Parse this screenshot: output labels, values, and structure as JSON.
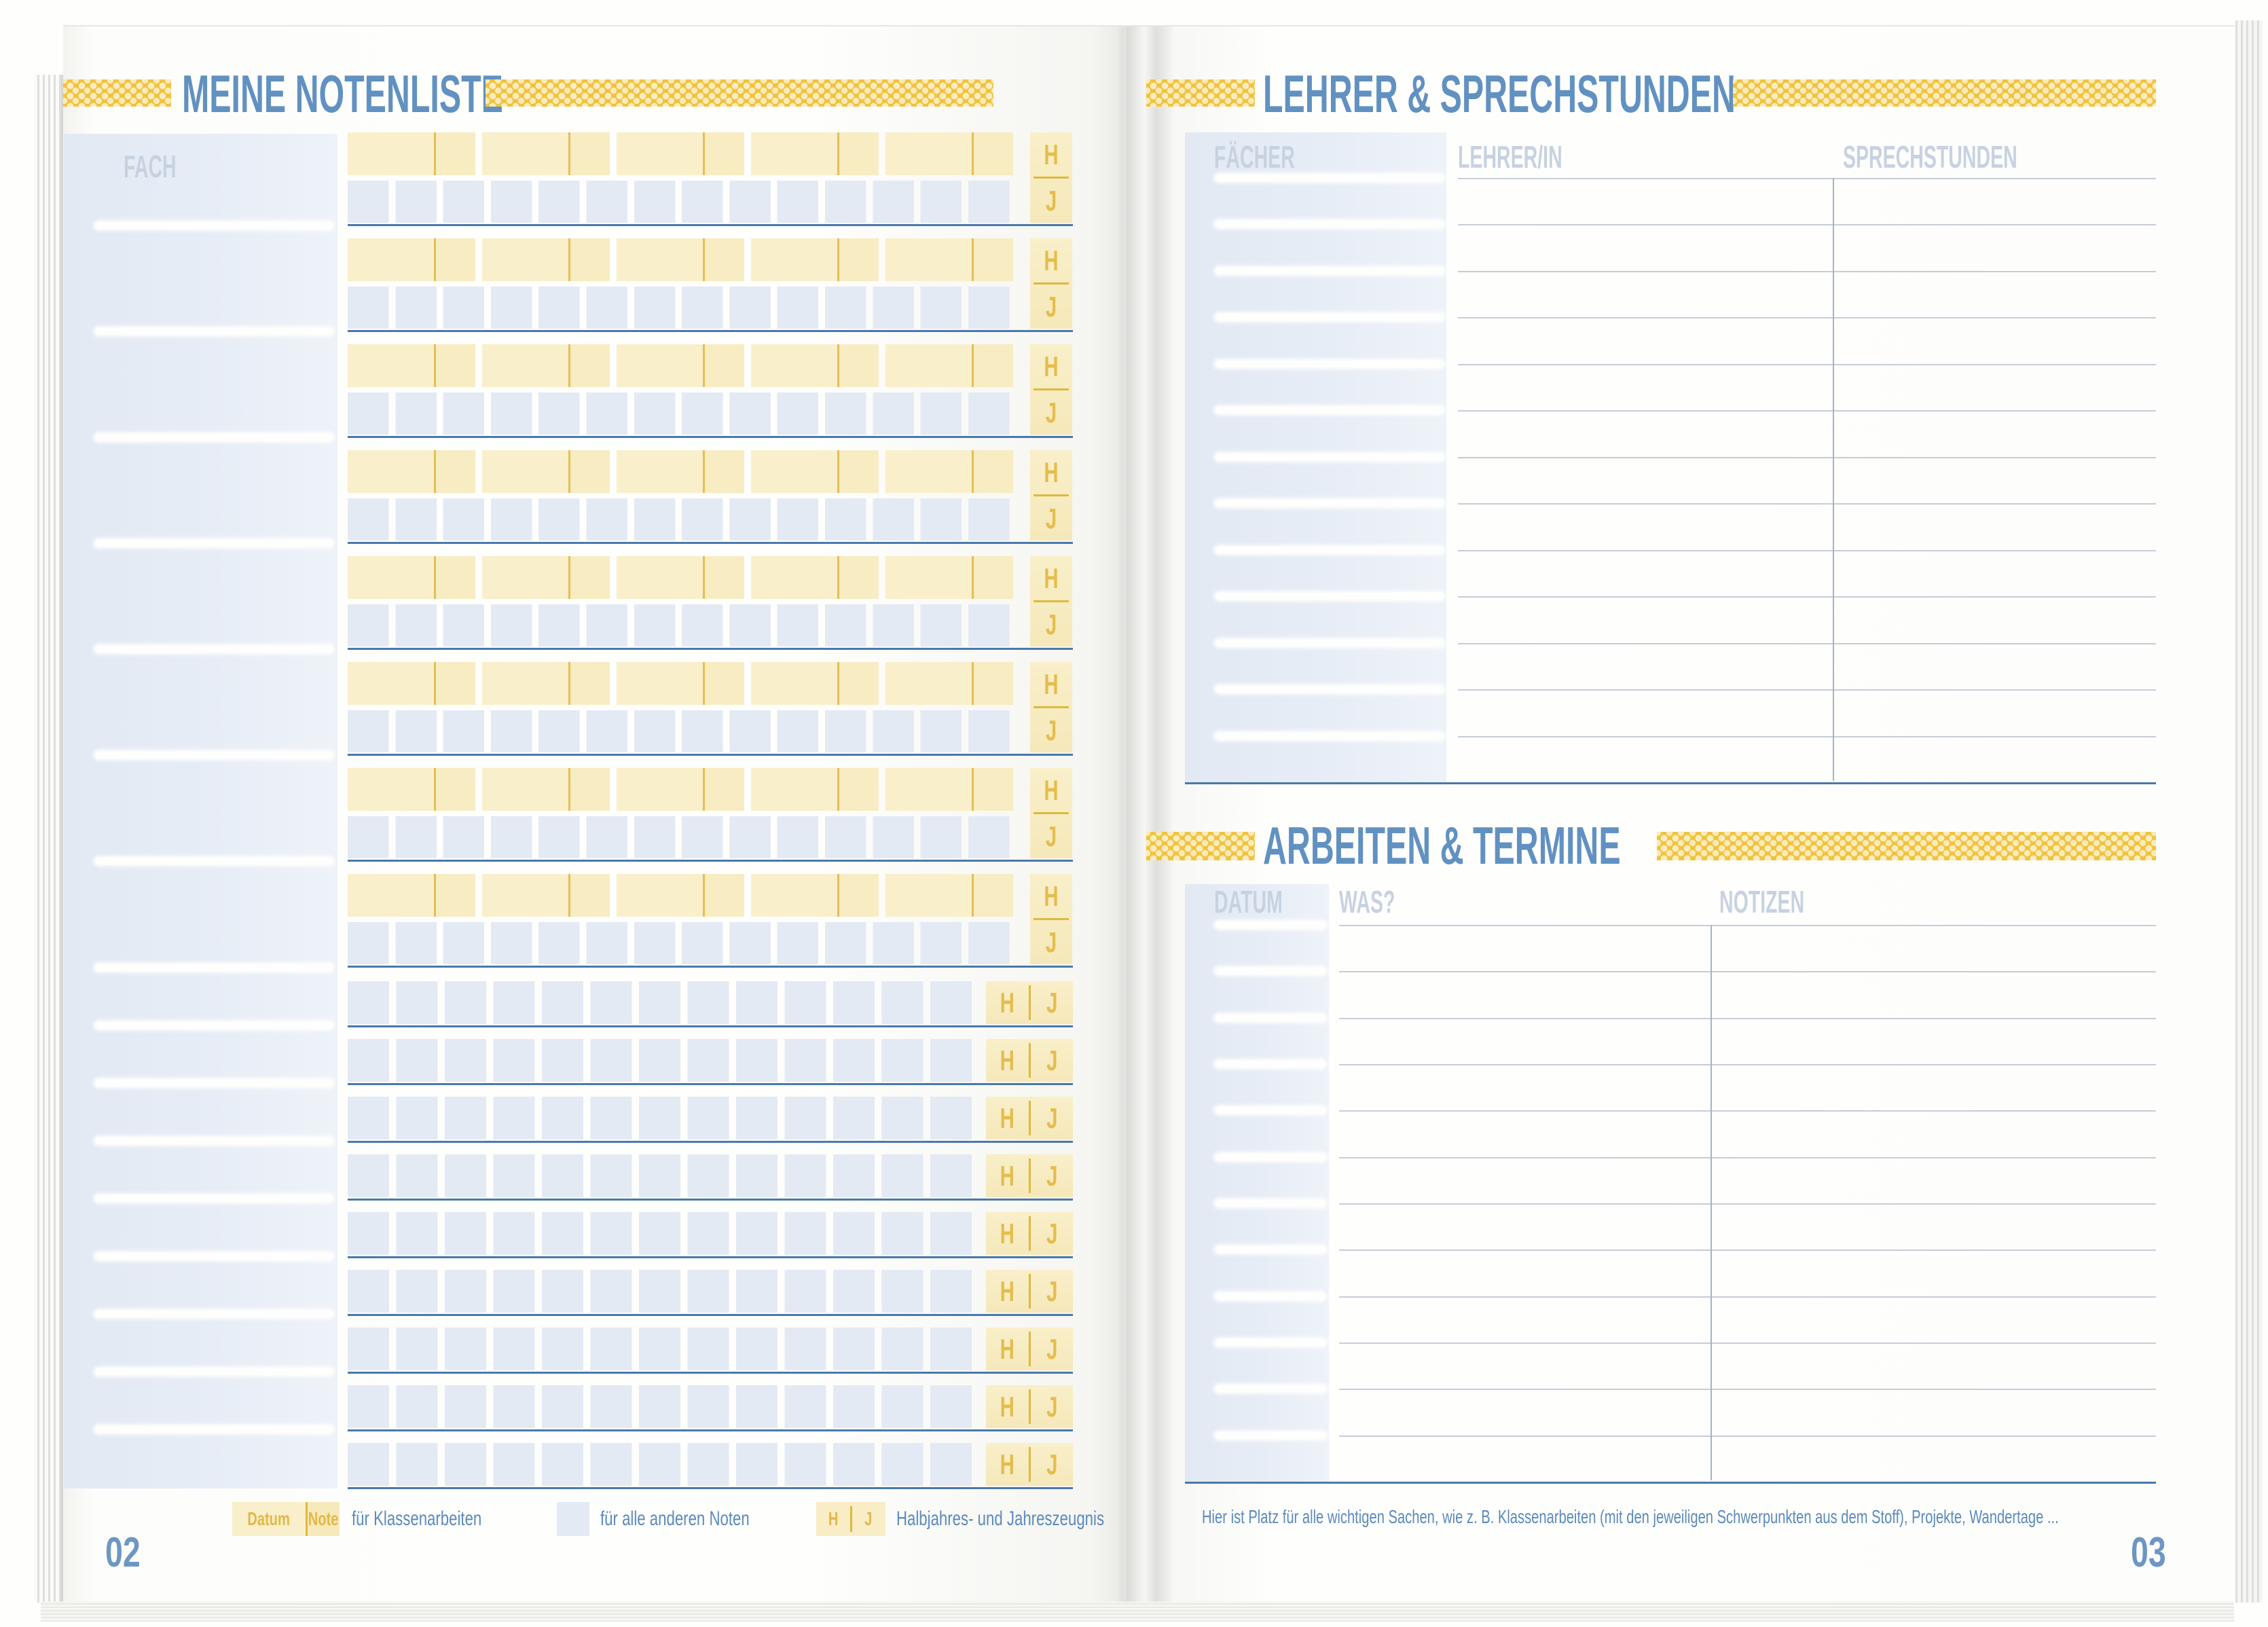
{
  "spread": {
    "left": {
      "page_number": "02",
      "header": {
        "title": "MEINE NOTENLISTE"
      },
      "grades_table": {
        "fach_label": "FACH",
        "halbjahr_label": "H",
        "jahr_label": "J",
        "double_row_count": 8,
        "single_row_count": 9
      },
      "legend": {
        "datum": "Datum",
        "note": "Note",
        "klassenarbeiten": "für Klassenarbeiten",
        "andere_noten": "für alle anderen Noten",
        "h": "H",
        "j": "J",
        "zeugnis": "Halbjahres- und Jahreszeugnis"
      }
    },
    "right": {
      "page_number": "03",
      "teachers_table": {
        "title": "LEHRER & SPRECHSTUNDEN",
        "col_faecher": "FÄCHER",
        "col_lehrer": "LEHRER/IN",
        "col_sprechstunden": "SPRECHSTUNDEN",
        "row_count": 13
      },
      "schedule_table": {
        "title": "ARBEITEN & TERMINE",
        "col_datum": "DATUM",
        "col_was": "WAS?",
        "col_notizen": "NOTIZEN",
        "row_count": 12
      },
      "footer_note": "Hier ist Platz für alle wichtigen Sachen, wie z. B. Klassenarbeiten (mit den jeweiligen Schwerpunkten aus dem Stoff), Projekte, Wandertage ..."
    },
    "colors": {
      "tape_yellow": "#F0C33E",
      "title_blue": "#6191C1",
      "cell_yellow": "#F9EFCB",
      "cell_blue": "#E3EAF4",
      "underline_blue": "#4A79AB",
      "gold_text": "#E5BD4D",
      "label_gray_blue": "#C7D2E1"
    }
  }
}
